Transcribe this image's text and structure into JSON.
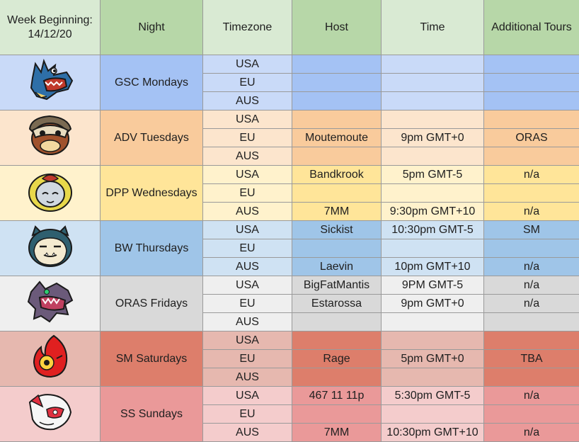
{
  "header": {
    "week": "Week Beginning:",
    "week_date": "14/12/20",
    "night": "Night",
    "timezone": "Timezone",
    "host": "Host",
    "time": "Time",
    "additional": "Additional Tours"
  },
  "nights": [
    {
      "name": "GSC Mondays",
      "icon": "feraligatr-icon",
      "colors": {
        "icon": "#c9daf8",
        "night": "#a4c2f4",
        "tz": "#c9daf8",
        "host": "#a4c2f4",
        "time": "#c9daf8",
        "add": "#a4c2f4"
      },
      "rows": [
        {
          "tz": "USA",
          "host": "",
          "time": "",
          "add": ""
        },
        {
          "tz": "EU",
          "host": "",
          "time": "",
          "add": ""
        },
        {
          "tz": "AUS",
          "host": "",
          "time": "",
          "add": ""
        }
      ]
    },
    {
      "name": "ADV Tuesdays",
      "icon": "marowak-icon",
      "colors": {
        "icon": "#fce5cd",
        "night": "#f9cb9c",
        "tz": "#fce5cd",
        "host": "#f9cb9c",
        "time": "#fce5cd",
        "add": "#f9cb9c"
      },
      "rows": [
        {
          "tz": "USA",
          "host": "",
          "time": "",
          "add": ""
        },
        {
          "tz": "EU",
          "host": "Moutemoute",
          "time": "9pm GMT+0",
          "add": "ORAS"
        },
        {
          "tz": "AUS",
          "host": "",
          "time": "",
          "add": ""
        }
      ]
    },
    {
      "name": "DPP Wednesdays",
      "icon": "uxie-icon",
      "colors": {
        "icon": "#fff2cc",
        "night": "#ffe599",
        "tz": "#fff2cc",
        "host": "#ffe599",
        "time": "#fff2cc",
        "add": "#ffe599"
      },
      "rows": [
        {
          "tz": "USA",
          "host": "Bandkrook",
          "time": "5pm GMT-5",
          "add": "n/a"
        },
        {
          "tz": "EU",
          "host": "",
          "time": "",
          "add": ""
        },
        {
          "tz": "AUS",
          "host": "7MM",
          "time": "9:30pm GMT+10",
          "add": "n/a"
        }
      ]
    },
    {
      "name": "BW Thursdays",
      "icon": "snorlax-icon",
      "colors": {
        "icon": "#cfe2f3",
        "night": "#9fc5e8",
        "tz": "#cfe2f3",
        "host": "#9fc5e8",
        "time": "#cfe2f3",
        "add": "#9fc5e8"
      },
      "rows": [
        {
          "tz": "USA",
          "host": "Sickist",
          "time": "10:30pm GMT-5",
          "add": "SM"
        },
        {
          "tz": "EU",
          "host": "",
          "time": "",
          "add": ""
        },
        {
          "tz": "AUS",
          "host": "Laevin",
          "time": "10pm GMT+10",
          "add": "n/a"
        }
      ]
    },
    {
      "name": "ORAS Fridays",
      "icon": "mega-aerodactyl-icon",
      "colors": {
        "icon": "#efefef",
        "night": "#d9d9d9",
        "tz": "#efefef",
        "host": "#d9d9d9",
        "time": "#efefef",
        "add": "#d9d9d9"
      },
      "rows": [
        {
          "tz": "USA",
          "host": "BigFatMantis",
          "time": "9PM GMT-5",
          "add": "n/a"
        },
        {
          "tz": "EU",
          "host": "Estarossa",
          "time": "9pm GMT+0",
          "add": "n/a"
        },
        {
          "tz": "AUS",
          "host": "",
          "time": "",
          "add": ""
        }
      ]
    },
    {
      "name": "SM Saturdays",
      "icon": "fire-ball-icon",
      "colors": {
        "icon": "#e6b8af",
        "night": "#dd7e6b",
        "tz": "#e6b8af",
        "host": "#dd7e6b",
        "time": "#e6b8af",
        "add": "#dd7e6b"
      },
      "rows": [
        {
          "tz": "USA",
          "host": "",
          "time": "",
          "add": ""
        },
        {
          "tz": "EU",
          "host": "Rage",
          "time": "5pm GMT+0",
          "add": "TBA"
        },
        {
          "tz": "AUS",
          "host": "",
          "time": "",
          "add": ""
        }
      ]
    },
    {
      "name": "SS Sundays",
      "icon": "latias-icon",
      "colors": {
        "icon": "#f4cccc",
        "night": "#ea9999",
        "tz": "#f4cccc",
        "host": "#ea9999",
        "time": "#f4cccc",
        "add": "#ea9999"
      },
      "rows": [
        {
          "tz": "USA",
          "host": "467 11 11p",
          "time": "5:30pm GMT-5",
          "add": "n/a"
        },
        {
          "tz": "EU",
          "host": "",
          "time": "",
          "add": ""
        },
        {
          "tz": "AUS",
          "host": "7MM",
          "time": "10:30pm GMT+10",
          "add": "n/a"
        }
      ]
    }
  ]
}
